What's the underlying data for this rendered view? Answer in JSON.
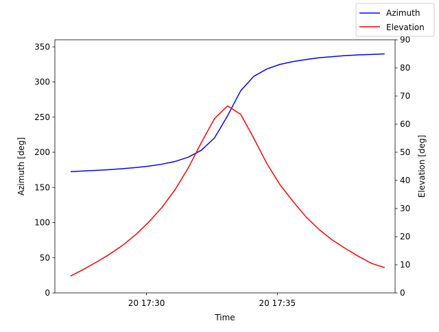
{
  "chart_data": {
    "type": "line",
    "title": "",
    "xlabel": "Time",
    "ylabel_left": "Azimuth [deg]",
    "ylabel_right": "Elevation [deg]",
    "x_tick_labels": [
      "20 17:30",
      "20 17:35"
    ],
    "xlim": [
      "17:26:30",
      "17:39:30"
    ],
    "ylim_left": [
      0,
      360
    ],
    "ylim_right": [
      0,
      90
    ],
    "yticks_left": [
      0,
      50,
      100,
      150,
      200,
      250,
      300,
      350
    ],
    "yticks_right": [
      0,
      10,
      20,
      30,
      40,
      50,
      60,
      70,
      80,
      90
    ],
    "grid": false,
    "legend_placement": "top-right",
    "x": [
      "17:27:06",
      "17:27:36",
      "17:28:06",
      "17:28:36",
      "17:29:06",
      "17:29:36",
      "17:30:06",
      "17:30:36",
      "17:31:06",
      "17:31:36",
      "17:32:06",
      "17:32:36",
      "17:33:06",
      "17:33:36",
      "17:34:06",
      "17:34:36",
      "17:35:06",
      "17:35:36",
      "17:36:06",
      "17:36:36",
      "17:37:06",
      "17:37:36",
      "17:38:06",
      "17:38:36",
      "17:39:06"
    ],
    "series": [
      {
        "name": "Azimuth",
        "axis": "left",
        "color": "#0000ff",
        "values": [
          172.5,
          173.4,
          174.3,
          175.4,
          176.7,
          178.3,
          180.4,
          183.1,
          187,
          193.1,
          203,
          220.5,
          252,
          287.5,
          308,
          318.5,
          325,
          329,
          332,
          334.5,
          336,
          337.5,
          338.5,
          339.2,
          340
        ]
      },
      {
        "name": "Elevation",
        "axis": "right",
        "color": "#ff0000",
        "values": [
          6,
          8.4,
          11,
          13.8,
          17,
          20.8,
          25.3,
          30.5,
          36.8,
          44.5,
          53.5,
          62,
          66.5,
          63.5,
          55,
          46,
          38.5,
          32.5,
          27,
          22.5,
          18.8,
          15.8,
          13,
          10.5,
          9
        ]
      }
    ]
  }
}
